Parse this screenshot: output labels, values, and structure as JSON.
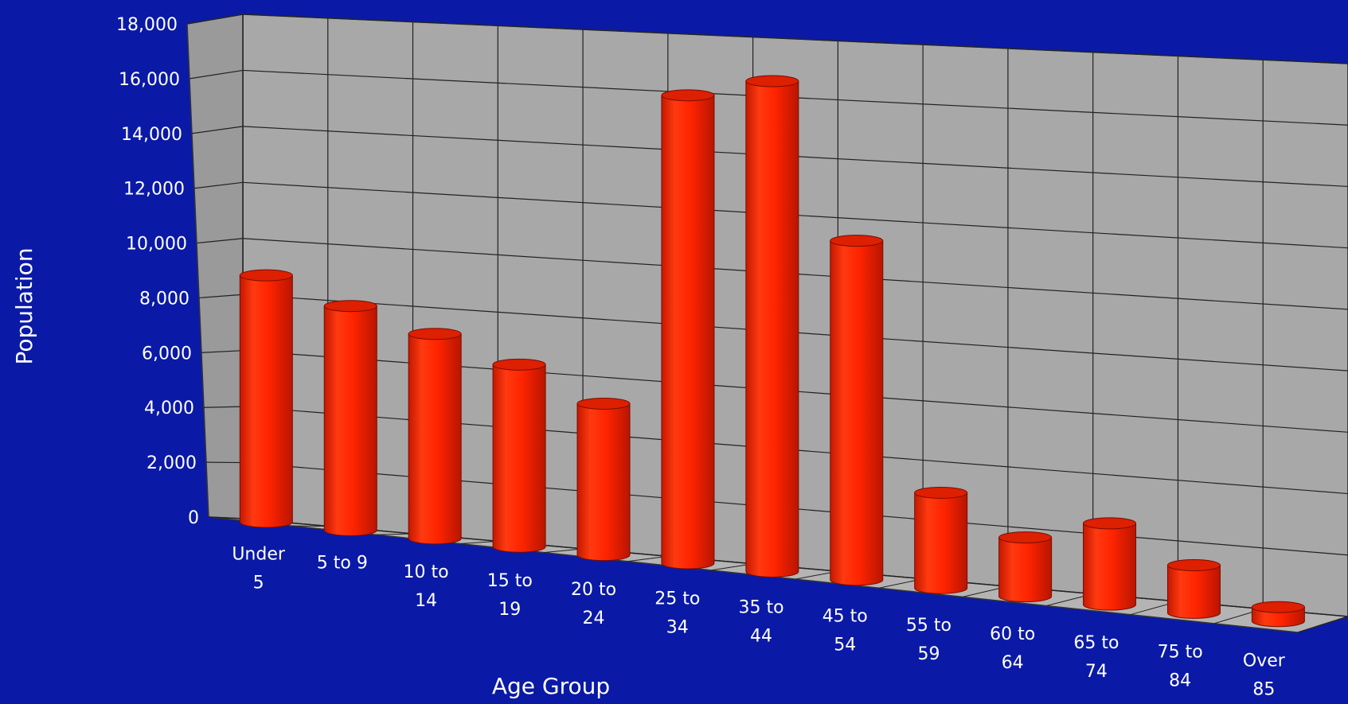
{
  "chart_data": {
    "type": "bar",
    "xlabel": "Age Group",
    "ylabel": "Population",
    "ylim": [
      0,
      18000
    ],
    "yticks": [
      "0",
      "2,000",
      "4,000",
      "6,000",
      "8,000",
      "10,000",
      "12,000",
      "14,000",
      "16,000",
      "18,000"
    ],
    "categories": [
      [
        "Under",
        "5"
      ],
      [
        "5 to 9"
      ],
      [
        "10 to",
        "14"
      ],
      [
        "15 to",
        "19"
      ],
      [
        "20 to",
        "24"
      ],
      [
        "25 to",
        "34"
      ],
      [
        "35 to",
        "44"
      ],
      [
        "45 to",
        "54"
      ],
      [
        "55 to",
        "59"
      ],
      [
        "60 to",
        "64"
      ],
      [
        "65 to",
        "74"
      ],
      [
        "75 to",
        "84"
      ],
      [
        "Over",
        "85"
      ]
    ],
    "values": [
      8800,
      8000,
      7300,
      6500,
      5400,
      16700,
      17500,
      12100,
      3400,
      2100,
      2900,
      1700,
      500
    ],
    "grid": true,
    "legend": "none",
    "colors": {
      "background": "#0a1aa6",
      "plot_wall": "#a8a8a8",
      "grid": "#222222",
      "bar": "#ff2a00",
      "bar_top": "#dd2000",
      "text": "#ffffff"
    }
  }
}
